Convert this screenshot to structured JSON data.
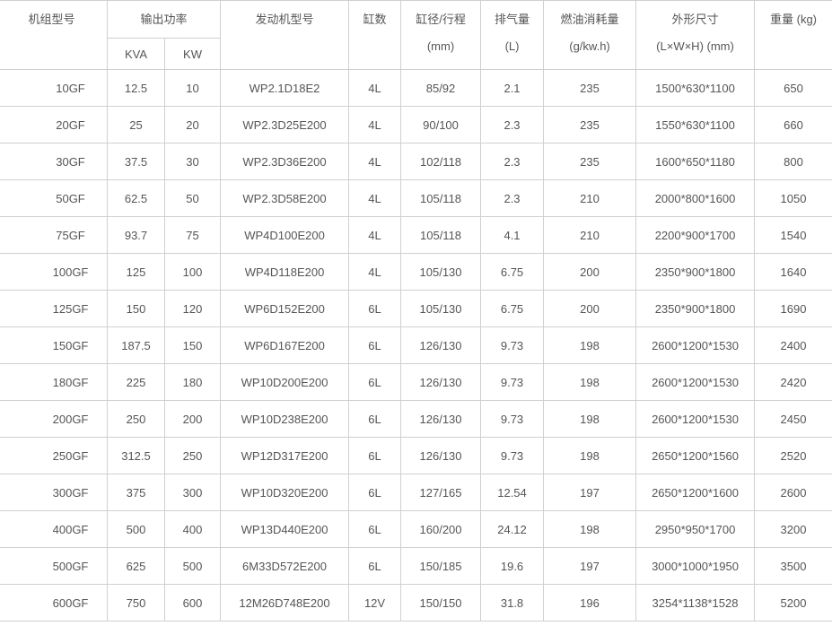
{
  "headers": {
    "model": "机组型号",
    "output_power": "输出功率",
    "kva": "KVA",
    "kw": "KW",
    "engine_model": "发动机型号",
    "cylinders": "缸数",
    "bore_stroke": "缸径/行程",
    "bore_stroke_unit": "(mm)",
    "displacement": "排气量",
    "displacement_unit": "(L)",
    "fuel_consumption": "燃油消耗量",
    "fuel_consumption_unit": "(g/kw.h)",
    "dimensions": "外形尺寸",
    "dimensions_unit": "(L×W×H) (mm)",
    "weight": "重量 (kg)"
  },
  "rows": [
    [
      "10GF",
      "12.5",
      "10",
      "WP2.1D18E2",
      "4L",
      "85/92",
      "2.1",
      "235",
      "1500*630*1100",
      "650"
    ],
    [
      "20GF",
      "25",
      "20",
      "WP2.3D25E200",
      "4L",
      "90/100",
      "2.3",
      "235",
      "1550*630*1100",
      "660"
    ],
    [
      "30GF",
      "37.5",
      "30",
      "WP2.3D36E200",
      "4L",
      "102/118",
      "2.3",
      "235",
      "1600*650*1180",
      "800"
    ],
    [
      "50GF",
      "62.5",
      "50",
      "WP2.3D58E200",
      "4L",
      "105/118",
      "2.3",
      "210",
      "2000*800*1600",
      "1050"
    ],
    [
      "75GF",
      "93.7",
      "75",
      "WP4D100E200",
      "4L",
      "105/118",
      "4.1",
      "210",
      "2200*900*1700",
      "1540"
    ],
    [
      "100GF",
      "125",
      "100",
      "WP4D118E200",
      "4L",
      "105/130",
      "6.75",
      "200",
      "2350*900*1800",
      "1640"
    ],
    [
      "125GF",
      "150",
      "120",
      "WP6D152E200",
      "6L",
      "105/130",
      "6.75",
      "200",
      "2350*900*1800",
      "1690"
    ],
    [
      "150GF",
      "187.5",
      "150",
      "WP6D167E200",
      "6L",
      "126/130",
      "9.73",
      "198",
      "2600*1200*1530",
      "2400"
    ],
    [
      "180GF",
      "225",
      "180",
      "WP10D200E200",
      "6L",
      "126/130",
      "9.73",
      "198",
      "2600*1200*1530",
      "2420"
    ],
    [
      "200GF",
      "250",
      "200",
      "WP10D238E200",
      "6L",
      "126/130",
      "9.73",
      "198",
      "2600*1200*1530",
      "2450"
    ],
    [
      "250GF",
      "312.5",
      "250",
      "WP12D317E200",
      "6L",
      "126/130",
      "9.73",
      "198",
      "2650*1200*1560",
      "2520"
    ],
    [
      "300GF",
      "375",
      "300",
      "WP10D320E200",
      "6L",
      "127/165",
      "12.54",
      "197",
      "2650*1200*1600",
      "2600"
    ],
    [
      "400GF",
      "500",
      "400",
      "WP13D440E200",
      "6L",
      "160/200",
      "24.12",
      "198",
      "2950*950*1700",
      "3200"
    ],
    [
      "500GF",
      "625",
      "500",
      "6M33D572E200",
      "6L",
      "150/185",
      "19.6",
      "197",
      "3000*1000*1950",
      "3500"
    ],
    [
      "600GF",
      "750",
      "600",
      "12M26D748E200",
      "12V",
      "150/150",
      "31.8",
      "196",
      "3254*1138*1528",
      "5200"
    ]
  ]
}
